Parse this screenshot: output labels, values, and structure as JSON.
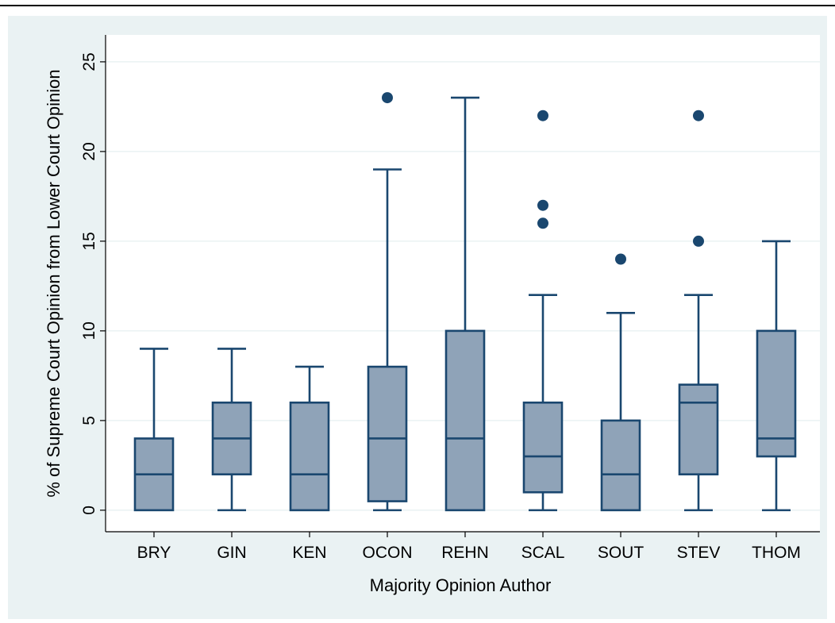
{
  "chart_data": {
    "type": "box",
    "xlabel": "Majority Opinion Author",
    "ylabel": "% of Supreme Court Opinion from Lower Court Opinion",
    "ylim": [
      -1.2,
      26.5
    ],
    "yticks": [
      0,
      5,
      10,
      15,
      20,
      25
    ],
    "grid": true,
    "legend": "none",
    "colors": {
      "outer_background": "#eaf2f3",
      "plot_background": "#ffffff",
      "box_fill": "#8fa3b8",
      "stroke": "#1a476f",
      "outlier": "#1a476f",
      "grid": "#eaf2f3"
    },
    "categories": [
      "BRY",
      "GIN",
      "KEN",
      "OCON",
      "REHN",
      "SCAL",
      "SOUT",
      "STEV",
      "THOM"
    ],
    "boxes": [
      {
        "label": "BRY",
        "whisker_low": 0,
        "q1": 0,
        "median": 2,
        "q3": 4,
        "whisker_high": 9,
        "outliers": []
      },
      {
        "label": "GIN",
        "whisker_low": 0,
        "q1": 2,
        "median": 4,
        "q3": 6,
        "whisker_high": 9,
        "outliers": []
      },
      {
        "label": "KEN",
        "whisker_low": 0,
        "q1": 0,
        "median": 2,
        "q3": 6,
        "whisker_high": 8,
        "outliers": []
      },
      {
        "label": "OCON",
        "whisker_low": 0,
        "q1": 0.5,
        "median": 4,
        "q3": 8,
        "whisker_high": 19,
        "outliers": [
          23
        ]
      },
      {
        "label": "REHN",
        "whisker_low": 0,
        "q1": 0,
        "median": 4,
        "q3": 10,
        "whisker_high": 23,
        "outliers": []
      },
      {
        "label": "SCAL",
        "whisker_low": 0,
        "q1": 1,
        "median": 3,
        "q3": 6,
        "whisker_high": 12,
        "outliers": [
          16,
          17,
          22
        ]
      },
      {
        "label": "SOUT",
        "whisker_low": 0,
        "q1": 0,
        "median": 2,
        "q3": 5,
        "whisker_high": 11,
        "outliers": [
          14
        ]
      },
      {
        "label": "STEV",
        "whisker_low": 0,
        "q1": 2,
        "median": 6,
        "q3": 7,
        "whisker_high": 12,
        "outliers": [
          15,
          22
        ]
      },
      {
        "label": "THOM",
        "whisker_low": 0,
        "q1": 3,
        "median": 4,
        "q3": 10,
        "whisker_high": 15,
        "outliers": []
      }
    ]
  }
}
